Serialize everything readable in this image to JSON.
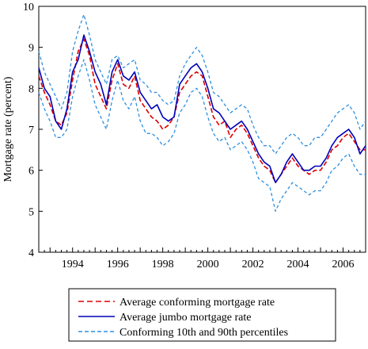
{
  "chart_data": {
    "type": "line",
    "title": "",
    "xlabel": "",
    "ylabel": "Mortgage rate (percent)",
    "xlim": [
      1992.5,
      2007.0
    ],
    "ylim": [
      4,
      10
    ],
    "x_ticks": [
      1994,
      1996,
      1998,
      2000,
      2002,
      2004,
      2006
    ],
    "x_tick_labels": [
      "1994",
      "1996",
      "1998",
      "2000",
      "2002",
      "2004",
      "2006"
    ],
    "y_ticks": [
      4,
      5,
      6,
      7,
      8,
      9,
      10
    ],
    "y_tick_labels": [
      "4",
      "5",
      "6",
      "7",
      "8",
      "9",
      "10"
    ],
    "grid": false,
    "legend_position": "bottom-center-below",
    "series": [
      {
        "name": "Average conforming mortgage rate",
        "color": "#dd0000",
        "style": "dashed",
        "x": [
          1992.5,
          1992.75,
          1993.0,
          1993.25,
          1993.5,
          1993.75,
          1994.0,
          1994.25,
          1994.5,
          1994.75,
          1995.0,
          1995.25,
          1995.5,
          1995.75,
          1996.0,
          1996.25,
          1996.5,
          1996.75,
          1997.0,
          1997.25,
          1997.5,
          1997.75,
          1998.0,
          1998.25,
          1998.5,
          1998.75,
          1999.0,
          1999.25,
          1999.5,
          1999.75,
          2000.0,
          2000.25,
          2000.5,
          2000.75,
          2001.0,
          2001.25,
          2001.5,
          2001.75,
          2002.0,
          2002.25,
          2002.5,
          2002.75,
          2003.0,
          2003.25,
          2003.5,
          2003.75,
          2004.0,
          2004.25,
          2004.5,
          2004.75,
          2005.0,
          2005.25,
          2005.5,
          2005.75,
          2006.0,
          2006.25,
          2006.5,
          2006.75,
          2007.0
        ],
        "values": [
          8.3,
          7.9,
          7.6,
          7.2,
          7.1,
          7.4,
          8.2,
          8.9,
          9.2,
          8.8,
          8.1,
          7.8,
          7.5,
          8.2,
          8.6,
          8.1,
          8.0,
          8.3,
          7.7,
          7.5,
          7.3,
          7.2,
          7.0,
          7.1,
          7.3,
          7.9,
          8.1,
          8.3,
          8.4,
          8.3,
          7.8,
          7.3,
          7.1,
          7.2,
          6.8,
          7.0,
          7.1,
          6.9,
          6.6,
          6.3,
          6.1,
          6.0,
          5.7,
          5.9,
          6.1,
          6.3,
          6.1,
          6.0,
          5.9,
          6.0,
          6.0,
          6.2,
          6.5,
          6.6,
          6.8,
          6.9,
          6.7,
          6.5,
          6.5
        ]
      },
      {
        "name": "Average jumbo mortgage rate",
        "color": "#0000bb",
        "style": "solid",
        "x": [
          1992.5,
          1992.75,
          1993.0,
          1993.25,
          1993.5,
          1993.75,
          1994.0,
          1994.25,
          1994.5,
          1994.75,
          1995.0,
          1995.25,
          1995.5,
          1995.75,
          1996.0,
          1996.25,
          1996.5,
          1996.75,
          1997.0,
          1997.25,
          1997.5,
          1997.75,
          1998.0,
          1998.25,
          1998.5,
          1998.75,
          1999.0,
          1999.25,
          1999.5,
          1999.75,
          2000.0,
          2000.25,
          2000.5,
          2000.75,
          2001.0,
          2001.25,
          2001.5,
          2001.75,
          2002.0,
          2002.25,
          2002.5,
          2002.75,
          2003.0,
          2003.25,
          2003.5,
          2003.75,
          2004.0,
          2004.25,
          2004.5,
          2004.75,
          2005.0,
          2005.25,
          2005.5,
          2005.75,
          2006.0,
          2006.25,
          2006.5,
          2006.75,
          2007.0
        ],
        "values": [
          8.5,
          8.0,
          7.8,
          7.2,
          7.0,
          7.5,
          8.4,
          8.7,
          9.3,
          8.9,
          8.4,
          8.1,
          7.6,
          8.4,
          8.7,
          8.3,
          8.2,
          8.4,
          7.9,
          7.7,
          7.5,
          7.6,
          7.3,
          7.2,
          7.3,
          8.1,
          8.3,
          8.5,
          8.6,
          8.4,
          8.0,
          7.5,
          7.4,
          7.2,
          7.0,
          7.1,
          7.2,
          7.0,
          6.7,
          6.4,
          6.2,
          6.1,
          5.7,
          5.9,
          6.2,
          6.4,
          6.2,
          6.0,
          6.0,
          6.1,
          6.1,
          6.3,
          6.6,
          6.8,
          6.9,
          7.0,
          6.8,
          6.4,
          6.6
        ]
      },
      {
        "name": "Conforming 10th and 90th percentiles",
        "color": "#2d8fe0",
        "style": "dashed",
        "x": [
          1992.5,
          1992.75,
          1993.0,
          1993.25,
          1993.5,
          1993.75,
          1994.0,
          1994.25,
          1994.5,
          1994.75,
          1995.0,
          1995.25,
          1995.5,
          1995.75,
          1996.0,
          1996.25,
          1996.5,
          1996.75,
          1997.0,
          1997.25,
          1997.5,
          1997.75,
          1998.0,
          1998.25,
          1998.5,
          1998.75,
          1999.0,
          1999.25,
          1999.5,
          1999.75,
          2000.0,
          2000.25,
          2000.5,
          2000.75,
          2001.0,
          2001.25,
          2001.5,
          2001.75,
          2002.0,
          2002.25,
          2002.5,
          2002.75,
          2003.0,
          2003.25,
          2003.5,
          2003.75,
          2004.0,
          2004.25,
          2004.5,
          2004.75,
          2005.0,
          2005.25,
          2005.5,
          2005.75,
          2006.0,
          2006.25,
          2006.5,
          2006.75,
          2007.0
        ],
        "values": [
          8.9,
          8.4,
          8.1,
          7.8,
          7.5,
          7.9,
          8.9,
          9.4,
          9.8,
          9.3,
          8.7,
          8.4,
          8.1,
          8.7,
          8.8,
          8.5,
          8.6,
          8.7,
          8.2,
          8.1,
          7.9,
          7.9,
          7.7,
          7.6,
          7.7,
          8.3,
          8.6,
          8.8,
          9.0,
          8.8,
          8.4,
          7.9,
          7.8,
          7.6,
          7.4,
          7.5,
          7.6,
          7.5,
          7.1,
          6.8,
          6.6,
          6.6,
          6.4,
          6.6,
          6.8,
          6.9,
          6.8,
          6.6,
          6.6,
          6.8,
          6.8,
          7.0,
          7.2,
          7.4,
          7.5,
          7.6,
          7.4,
          7.0,
          7.2
        ]
      },
      {
        "name": "Conforming 10th and 90th percentiles",
        "color": "#2d8fe0",
        "style": "dashed",
        "x": [
          1992.5,
          1992.75,
          1993.0,
          1993.25,
          1993.5,
          1993.75,
          1994.0,
          1994.25,
          1994.5,
          1994.75,
          1995.0,
          1995.25,
          1995.5,
          1995.75,
          1996.0,
          1996.25,
          1996.5,
          1996.75,
          1997.0,
          1997.25,
          1997.5,
          1997.75,
          1998.0,
          1998.25,
          1998.5,
          1998.75,
          1999.0,
          1999.25,
          1999.5,
          1999.75,
          2000.0,
          2000.25,
          2000.5,
          2000.75,
          2001.0,
          2001.25,
          2001.5,
          2001.75,
          2002.0,
          2002.25,
          2002.5,
          2002.75,
          2003.0,
          2003.25,
          2003.5,
          2003.75,
          2004.0,
          2004.25,
          2004.5,
          2004.75,
          2005.0,
          2005.25,
          2005.5,
          2005.75,
          2006.0,
          2006.25,
          2006.5,
          2006.75,
          2007.0
        ],
        "values": [
          7.9,
          7.5,
          7.2,
          6.8,
          6.8,
          7.0,
          7.8,
          8.3,
          8.7,
          8.2,
          7.6,
          7.3,
          7.0,
          7.7,
          8.2,
          7.7,
          7.5,
          7.8,
          7.2,
          6.9,
          6.9,
          6.8,
          6.6,
          6.7,
          6.9,
          7.4,
          7.6,
          7.9,
          8.0,
          7.8,
          7.3,
          6.9,
          6.7,
          6.8,
          6.5,
          6.6,
          6.7,
          6.5,
          6.2,
          5.8,
          5.7,
          5.6,
          5.0,
          5.3,
          5.5,
          5.7,
          5.6,
          5.5,
          5.4,
          5.5,
          5.5,
          5.7,
          6.0,
          6.1,
          6.3,
          6.4,
          6.1,
          5.9,
          5.9
        ]
      }
    ]
  },
  "legend": {
    "items": [
      {
        "label": "Average conforming mortgage rate",
        "color": "#dd0000",
        "style": "dashed"
      },
      {
        "label": "Average jumbo mortgage rate",
        "color": "#0000bb",
        "style": "solid"
      },
      {
        "label": "Conforming 10th and 90th percentiles",
        "color": "#2d8fe0",
        "style": "dashed"
      }
    ]
  }
}
